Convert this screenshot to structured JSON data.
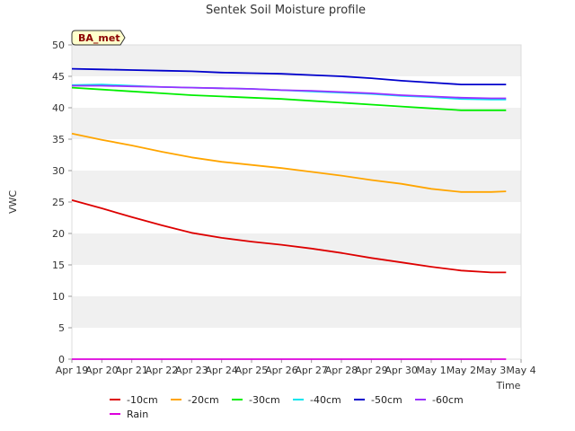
{
  "chart_data": {
    "type": "line",
    "title": "Sentek Soil Moisture profile",
    "xlabel": "Time",
    "ylabel": "VWC",
    "ylim": [
      0,
      50
    ],
    "yticks": [
      0,
      5,
      10,
      15,
      20,
      25,
      30,
      35,
      40,
      45,
      50
    ],
    "xlim": [
      "2024-04-19",
      "2024-05-04"
    ],
    "xtick_labels": [
      "Apr 19",
      "Apr 20",
      "Apr 21",
      "Apr 22",
      "Apr 23",
      "Apr 24",
      "Apr 25",
      "Apr 26",
      "Apr 27",
      "Apr 28",
      "Apr 29",
      "Apr 30",
      "May 1",
      "May 2",
      "May 3",
      "May 4"
    ],
    "grid": "alternating horizontal bands",
    "legend_position": "bottom",
    "annotation": "BA_met",
    "x": [
      "2024-04-19",
      "2024-04-20",
      "2024-04-21",
      "2024-04-22",
      "2024-04-23",
      "2024-04-24",
      "2024-04-25",
      "2024-04-26",
      "2024-04-27",
      "2024-04-28",
      "2024-04-29",
      "2024-04-30",
      "2024-05-01",
      "2024-05-02",
      "2024-05-03",
      "2024-05-03 12:00"
    ],
    "series": [
      {
        "name": "-10cm",
        "color": "#dd0000",
        "values": [
          25.3,
          24.0,
          22.6,
          21.3,
          20.1,
          19.3,
          18.7,
          18.2,
          17.6,
          16.9,
          16.1,
          15.4,
          14.7,
          14.1,
          13.8,
          13.8
        ]
      },
      {
        "name": "-20cm",
        "color": "#ffa500",
        "values": [
          35.9,
          34.9,
          34.0,
          33.0,
          32.1,
          31.4,
          30.9,
          30.4,
          29.8,
          29.2,
          28.5,
          27.9,
          27.1,
          26.6,
          26.6,
          26.7
        ]
      },
      {
        "name": "-30cm",
        "color": "#00ee00",
        "values": [
          43.2,
          42.9,
          42.6,
          42.3,
          42.0,
          41.8,
          41.6,
          41.4,
          41.1,
          40.8,
          40.5,
          40.2,
          39.9,
          39.6,
          39.6,
          39.6
        ]
      },
      {
        "name": "-40cm",
        "color": "#00e5ee",
        "values": [
          43.6,
          43.7,
          43.5,
          43.3,
          43.2,
          43.1,
          43.0,
          42.8,
          42.6,
          42.4,
          42.2,
          41.9,
          41.7,
          41.4,
          41.3,
          41.3
        ]
      },
      {
        "name": "-50cm",
        "color": "#0000cc",
        "values": [
          46.2,
          46.1,
          46.0,
          45.9,
          45.8,
          45.6,
          45.5,
          45.4,
          45.2,
          45.0,
          44.7,
          44.3,
          44.0,
          43.7,
          43.7,
          43.7
        ]
      },
      {
        "name": "-60cm",
        "color": "#9b30ff",
        "values": [
          43.5,
          43.5,
          43.4,
          43.3,
          43.2,
          43.1,
          43.0,
          42.8,
          42.7,
          42.5,
          42.3,
          42.0,
          41.8,
          41.6,
          41.5,
          41.5
        ]
      },
      {
        "name": "Rain",
        "color": "#dd00dd",
        "values": [
          0,
          0,
          0,
          0,
          0,
          0,
          0,
          0,
          0,
          0,
          0,
          0,
          0,
          0,
          0,
          0
        ]
      }
    ]
  }
}
